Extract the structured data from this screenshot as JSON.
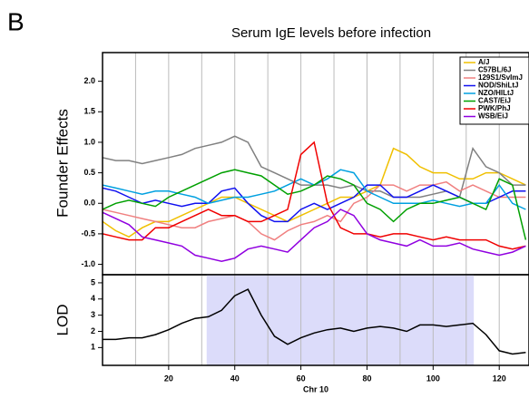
{
  "chart_data": [
    {
      "type": "line",
      "panel_label": "B",
      "title": "Serum IgE levels before infection",
      "ylabel": "Founder Effects",
      "x": [
        0,
        4,
        8,
        12,
        16,
        20,
        24,
        28,
        32,
        36,
        40,
        44,
        48,
        52,
        56,
        60,
        64,
        68,
        72,
        76,
        80,
        84,
        88,
        92,
        96,
        100,
        104,
        108,
        112,
        116,
        120,
        124,
        128
      ],
      "xlim": [
        0,
        129
      ],
      "ylim": [
        -1.17,
        2.47
      ],
      "yticks": [
        {
          "value": -1.0,
          "label": "-1.0"
        },
        {
          "value": -0.5,
          "label": "-0.5"
        },
        {
          "value": 0.0,
          "label": "0.0"
        },
        {
          "value": 0.5,
          "label": "0.5"
        },
        {
          "value": 1.0,
          "label": "1.0"
        },
        {
          "value": 1.5,
          "label": "1.5"
        },
        {
          "value": 2.0,
          "label": "2.0"
        }
      ],
      "vertical_grid": [
        10,
        20,
        30,
        40,
        50,
        60,
        70,
        80,
        90,
        100,
        110,
        120
      ],
      "legend": "upper right",
      "series": [
        {
          "name": "A/J",
          "color": "#f0c000",
          "values": [
            -0.3,
            -0.45,
            -0.55,
            -0.4,
            -0.3,
            -0.3,
            -0.2,
            -0.1,
            0.0,
            0.1,
            0.1,
            0.0,
            -0.1,
            -0.2,
            -0.3,
            -0.2,
            -0.1,
            0.0,
            0.1,
            0.1,
            0.2,
            0.3,
            0.9,
            0.8,
            0.6,
            0.5,
            0.5,
            0.4,
            0.4,
            0.5,
            0.5,
            0.4,
            0.3
          ]
        },
        {
          "name": "C57BL/6J",
          "color": "#808080",
          "values": [
            0.75,
            0.7,
            0.7,
            0.65,
            0.7,
            0.75,
            0.8,
            0.9,
            0.95,
            1.0,
            1.1,
            1.0,
            0.6,
            0.5,
            0.4,
            0.3,
            0.3,
            0.3,
            0.25,
            0.3,
            0.2,
            0.2,
            0.1,
            0.1,
            0.1,
            0.15,
            0.2,
            0.1,
            0.9,
            0.6,
            0.5,
            0.3,
            0.3
          ]
        },
        {
          "name": "129S1/SvImJ",
          "color": "#f08080",
          "values": [
            -0.1,
            -0.15,
            -0.2,
            -0.25,
            -0.3,
            -0.35,
            -0.4,
            -0.4,
            -0.3,
            -0.25,
            -0.2,
            -0.3,
            -0.5,
            -0.6,
            -0.45,
            -0.35,
            -0.3,
            -0.2,
            -0.3,
            0.0,
            0.1,
            0.3,
            0.3,
            0.2,
            0.3,
            0.3,
            0.35,
            0.2,
            0.3,
            0.2,
            0.1,
            0.1,
            0.1
          ]
        },
        {
          "name": "NOD/ShiLtJ",
          "color": "#1010f0",
          "values": [
            0.25,
            0.2,
            0.1,
            0.0,
            0.05,
            0.0,
            -0.05,
            0.0,
            0.0,
            0.2,
            0.25,
            0.0,
            -0.2,
            -0.3,
            -0.3,
            -0.1,
            0.0,
            -0.1,
            0.0,
            0.1,
            0.3,
            0.3,
            0.1,
            0.1,
            0.2,
            0.3,
            0.2,
            0.1,
            0.0,
            0.0,
            0.1,
            0.2,
            0.2
          ]
        },
        {
          "name": "NZO/HlLtJ",
          "color": "#00a0e0",
          "values": [
            0.3,
            0.25,
            0.2,
            0.15,
            0.2,
            0.2,
            0.15,
            0.1,
            0.0,
            0.05,
            0.1,
            0.1,
            0.15,
            0.2,
            0.3,
            0.4,
            0.3,
            0.4,
            0.55,
            0.5,
            0.2,
            0.1,
            0.0,
            0.0,
            0.0,
            0.05,
            0.0,
            -0.05,
            0.0,
            0.0,
            0.3,
            0.0,
            -0.1
          ]
        },
        {
          "name": "CAST/EiJ",
          "color": "#00a000",
          "values": [
            -0.1,
            0.0,
            0.05,
            0.0,
            -0.05,
            0.1,
            0.2,
            0.3,
            0.4,
            0.5,
            0.55,
            0.5,
            0.45,
            0.3,
            0.15,
            0.2,
            0.3,
            0.45,
            0.4,
            0.3,
            0.0,
            -0.1,
            -0.3,
            -0.1,
            0.0,
            0.0,
            0.05,
            0.1,
            0.0,
            -0.1,
            0.4,
            0.3,
            -0.6
          ]
        },
        {
          "name": "PWK/PhJ",
          "color": "#f00000",
          "values": [
            -0.5,
            -0.55,
            -0.6,
            -0.6,
            -0.4,
            -0.4,
            -0.3,
            -0.2,
            -0.1,
            -0.2,
            -0.2,
            -0.3,
            -0.3,
            -0.2,
            -0.1,
            0.8,
            1.0,
            0.0,
            -0.4,
            -0.5,
            -0.5,
            -0.55,
            -0.5,
            -0.5,
            -0.55,
            -0.6,
            -0.55,
            -0.6,
            -0.6,
            -0.6,
            -0.7,
            -0.75,
            -0.7
          ]
        },
        {
          "name": "WSB/EiJ",
          "color": "#9000e0",
          "values": [
            -0.15,
            -0.25,
            -0.35,
            -0.55,
            -0.6,
            -0.65,
            -0.7,
            -0.85,
            -0.9,
            -0.95,
            -0.9,
            -0.75,
            -0.7,
            -0.75,
            -0.8,
            -0.6,
            -0.4,
            -0.3,
            -0.1,
            -0.2,
            -0.5,
            -0.6,
            -0.65,
            -0.7,
            -0.6,
            -0.7,
            -0.7,
            -0.65,
            -0.75,
            -0.8,
            -0.85,
            -0.8,
            -0.7
          ]
        }
      ]
    },
    {
      "type": "line",
      "ylabel": "LOD",
      "xlabel": "Chr 10",
      "x": [
        0,
        4,
        8,
        12,
        16,
        20,
        24,
        28,
        32,
        36,
        40,
        44,
        48,
        52,
        56,
        60,
        64,
        68,
        72,
        76,
        80,
        84,
        88,
        92,
        96,
        100,
        104,
        108,
        112,
        116,
        120,
        124,
        128
      ],
      "xlim": [
        0,
        129
      ],
      "ylim": [
        -0.1,
        5.5
      ],
      "xticks": [
        20,
        40,
        60,
        80,
        100,
        120
      ],
      "yticks": [
        1,
        2,
        3,
        4,
        5
      ],
      "vertical_grid": [
        10,
        20,
        30,
        40,
        50,
        60,
        70,
        80,
        90,
        100,
        110,
        120
      ],
      "highlight": [
        31.5,
        112.3
      ],
      "highlight_color": "#dcdcfa",
      "series": [
        {
          "color": "#000000",
          "values": [
            1.5,
            1.5,
            1.6,
            1.6,
            1.8,
            2.1,
            2.5,
            2.8,
            2.9,
            3.3,
            4.2,
            4.6,
            3.0,
            1.7,
            1.2,
            1.6,
            1.9,
            2.1,
            2.2,
            2.0,
            2.2,
            2.3,
            2.2,
            2.0,
            2.4,
            2.4,
            2.3,
            2.4,
            2.5,
            1.8,
            0.8,
            0.6,
            0.7
          ]
        }
      ]
    }
  ]
}
